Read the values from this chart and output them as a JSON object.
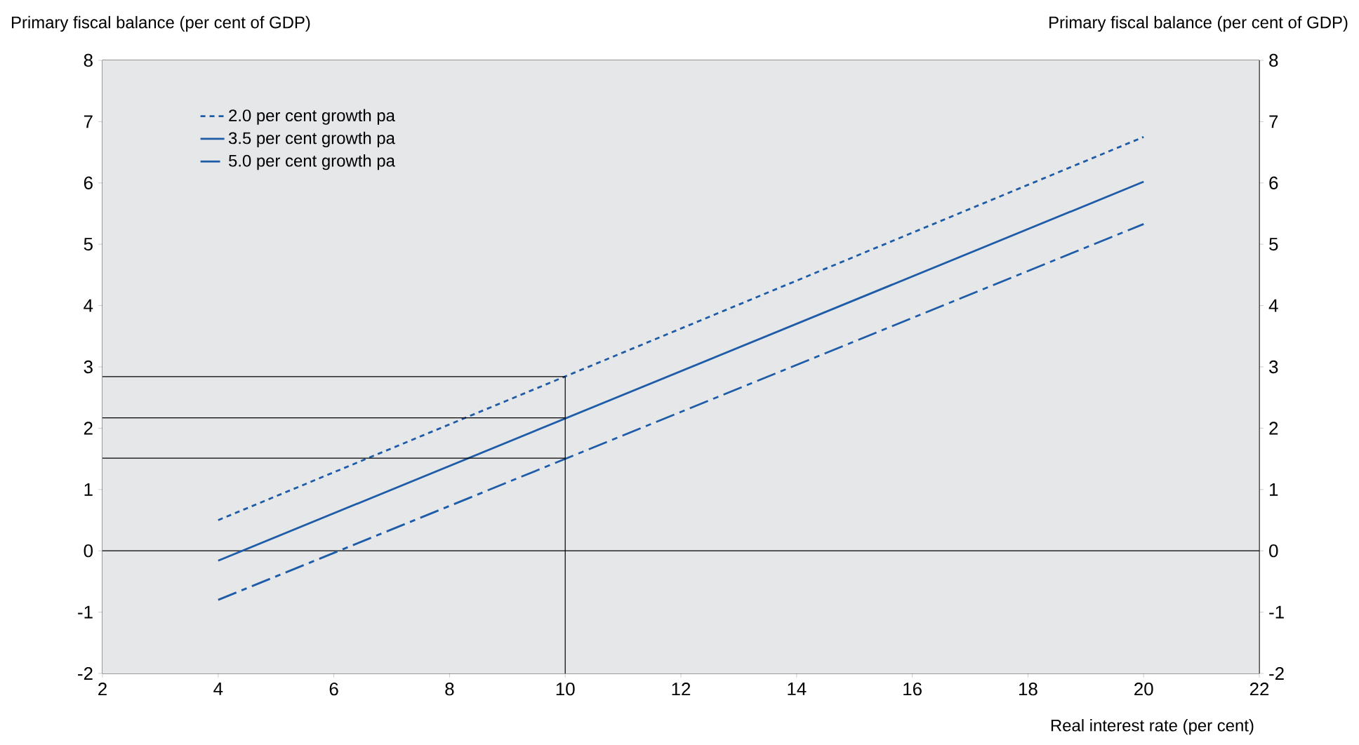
{
  "chart_data": {
    "type": "line",
    "ylabel": "Primary fiscal balance (per cent of GDP)",
    "y2label": "Primary fiscal balance (per cent of GDP)",
    "xlabel": "Real interest rate (per cent)",
    "xlim": [
      2,
      22
    ],
    "xticks": [
      2,
      4,
      6,
      8,
      10,
      12,
      14,
      16,
      18,
      20,
      22
    ],
    "ylim": [
      -2,
      8
    ],
    "yticks": [
      -2,
      -1,
      0,
      1,
      2,
      3,
      4,
      5,
      6,
      7,
      8
    ],
    "y2lim": [
      -2,
      8
    ],
    "y2ticks": [
      -2,
      -1,
      0,
      1,
      2,
      3,
      4,
      5,
      6,
      7,
      8
    ],
    "legend": "top left",
    "grid": false,
    "series": [
      {
        "name": "2.0 per cent growth pa",
        "color": "#1f5ca8",
        "line_style": "dotted",
        "x": [
          4,
          20
        ],
        "values": [
          0.5,
          6.75
        ]
      },
      {
        "name": "3.5 per cent growth pa",
        "color": "#1f5ca8",
        "line_style": "solid",
        "x": [
          4,
          20
        ],
        "values": [
          -0.16,
          6.02
        ]
      },
      {
        "name": "5.0 per cent growth pa",
        "color": "#1f5ca8",
        "line_style": "dashdot",
        "x": [
          4,
          20
        ],
        "values": [
          -0.8,
          5.33
        ]
      },
      {
        "color": "#000000",
        "line_style": "solid",
        "x": [
          2,
          10
        ],
        "values": [
          2.84,
          2.84
        ]
      },
      {
        "color": "#000000",
        "line_style": "solid",
        "x": [
          2,
          10
        ],
        "values": [
          2.17,
          2.17
        ]
      },
      {
        "color": "#000000",
        "line_style": "solid",
        "x": [
          2,
          10
        ],
        "values": [
          1.51,
          1.51
        ]
      },
      {
        "color": "#000000",
        "line_style": "solid",
        "x": [
          10,
          10
        ],
        "values": [
          -2,
          2.84
        ]
      }
    ],
    "ref_lines": [
      {
        "axis": "y",
        "value": 0,
        "color": "#000000"
      }
    ]
  }
}
